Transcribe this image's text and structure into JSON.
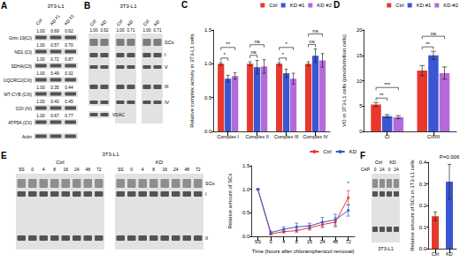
{
  "blots": {
    "A": {
      "label": "A",
      "cell_line": "3T3-L1",
      "lanes": [
        "Ctrl",
        "KD #1",
        "KD #2"
      ],
      "rows": [
        {
          "protein": "Grim 19(CI)",
          "values": [
            "1.00",
            "0.69",
            "0.62"
          ]
        },
        {
          "protein": "ND1 (CI)",
          "values": [
            "1.00",
            "0.57",
            "0.70"
          ]
        },
        {
          "protein": "SDHA(CII)",
          "values": [
            "1.00",
            "0.72",
            "0.87"
          ]
        },
        {
          "protein": "UQCRC2(CIII)",
          "values": [
            "1.00",
            "0.49",
            "0.32"
          ]
        },
        {
          "protein": "MT-CYB (CIII)",
          "values": [
            "1.00",
            "0.35",
            "0.44"
          ]
        },
        {
          "protein": "COI (IV)",
          "values": [
            "1.00",
            "0.40",
            "0.45"
          ]
        },
        {
          "protein": "ATP5A (CV)",
          "values": [
            "1.00",
            "0.67",
            "0.77"
          ]
        },
        {
          "protein": "Actin",
          "values": []
        }
      ]
    },
    "B": {
      "label": "B",
      "cell_line": "3T3-L1",
      "gels": [
        {
          "lanes": [
            "Ctrl",
            "KD"
          ],
          "values": [
            "1.00",
            "0.92"
          ]
        },
        {
          "lanes": [
            "Ctrl",
            "KD"
          ],
          "values": [
            "1.00",
            "0.71"
          ]
        },
        {
          "lanes": [
            "Ctrl",
            "KD"
          ],
          "values": [
            "1.00",
            "0.71"
          ]
        }
      ],
      "loading_control": "VDAC",
      "bands": [
        "SCs",
        "I",
        "V",
        "III",
        "IV"
      ]
    },
    "E": {
      "label": "E",
      "cell_line": "3T3-L1",
      "groups": [
        {
          "name": "Ctrl",
          "lanes": [
            "SS",
            "0",
            "4",
            "8",
            "16",
            "24",
            "48",
            "72"
          ]
        },
        {
          "name": "KD",
          "lanes": [
            "SS",
            "0",
            "4",
            "8",
            "16",
            "24",
            "48",
            "72"
          ]
        }
      ],
      "bands": [
        "SCs",
        "I",
        "II"
      ]
    },
    "F": {
      "label": "F",
      "cell_line": "3T3-L1",
      "groups": [
        "Ctrl",
        "KD"
      ],
      "treatment": "CAP",
      "lanes": [
        "0",
        "24",
        "0",
        "24"
      ]
    }
  },
  "chart_data": [
    {
      "title": "C",
      "type": "bar",
      "categories": [
        "Complex I",
        "Complex II",
        "Complex III",
        "Complex IV"
      ],
      "ylabel": "Relative complex activity in 3T3-L1 cells",
      "ylim": [
        0,
        1.5
      ],
      "yticks": [
        {
          "value": 0,
          "label": "0.0"
        },
        {
          "value": 0.5,
          "label": "0.5"
        },
        {
          "value": 1,
          "label": "1.0"
        },
        {
          "value": 1.5,
          "label": "1.5"
        }
      ],
      "grid": false,
      "legend": "top-right",
      "series": [
        {
          "name": "Ctrl",
          "color": "#e8382e",
          "values": [
            1.0,
            1.0,
            1.0,
            1.0
          ],
          "errors": [
            0.02,
            0.03,
            0.02,
            0.03
          ]
        },
        {
          "name": "KD #1",
          "color": "#3a56d4",
          "values": [
            0.78,
            0.95,
            0.86,
            1.12
          ],
          "errors": [
            0.05,
            0.1,
            0.06,
            0.1
          ]
        },
        {
          "name": "KD #2",
          "color": "#b46ad8",
          "values": [
            0.82,
            0.96,
            0.78,
            1.05
          ],
          "errors": [
            0.05,
            0.1,
            0.08,
            0.1
          ]
        }
      ],
      "annotations": [
        {
          "text": "*",
          "category": "Complex I",
          "from": "Ctrl",
          "to": "KD #1"
        },
        {
          "text": "**",
          "category": "Complex I",
          "from": "Ctrl",
          "to": "KD #2"
        },
        {
          "text": "ns",
          "category": "Complex II",
          "from": "Ctrl",
          "to": "KD #1"
        },
        {
          "text": "ns",
          "category": "Complex II",
          "from": "Ctrl",
          "to": "KD #2"
        },
        {
          "text": "*",
          "category": "Complex III",
          "from": "Ctrl",
          "to": "KD #1"
        },
        {
          "text": "*",
          "category": "Complex III",
          "from": "Ctrl",
          "to": "KD #2"
        },
        {
          "text": "ns",
          "category": "Complex IV",
          "from": "Ctrl",
          "to": "KD #1"
        },
        {
          "text": "ns",
          "category": "Complex IV",
          "from": "Ctrl",
          "to": "KD #2"
        }
      ]
    },
    {
      "title": "D",
      "type": "bar",
      "categories": [
        "CI",
        "CII/III"
      ],
      "ylabel": "VO in 3T3-L1 cells (pmol/s/million cells)",
      "ylim": [
        0,
        20
      ],
      "yticks": [
        0,
        5,
        10,
        15,
        20
      ],
      "grid": false,
      "legend": "top-right",
      "series": [
        {
          "name": "Ctrl",
          "color": "#e8382e",
          "values": [
            5.3,
            12.0
          ],
          "errors": [
            0.4,
            1.0
          ]
        },
        {
          "name": "KD #1",
          "color": "#3a56d4",
          "values": [
            3.0,
            15.0
          ],
          "errors": [
            0.3,
            0.8
          ]
        },
        {
          "name": "KD #2",
          "color": "#b46ad8",
          "values": [
            2.8,
            11.5
          ],
          "errors": [
            0.3,
            1.2
          ]
        }
      ],
      "annotations": [
        {
          "text": "**",
          "category": "CI",
          "from": "Ctrl",
          "to": "KD #1"
        },
        {
          "text": "***",
          "category": "CI",
          "from": "Ctrl",
          "to": "KD #2"
        },
        {
          "text": "**",
          "category": "CII/III",
          "from": "Ctrl",
          "to": "KD #1"
        },
        {
          "text": "ns",
          "category": "CII/III",
          "from": "Ctrl",
          "to": "KD #2"
        }
      ]
    },
    {
      "type": "line",
      "categories": [
        "SS",
        "0",
        "4",
        "8",
        "16",
        "24",
        "48",
        "72"
      ],
      "xlabel": "Time (hours after chloramphenicol removal)",
      "ylabel": "Relative amount of SCs",
      "ylim": [
        0,
        1.5
      ],
      "yticks": [
        {
          "value": 0,
          "label": "0.0"
        },
        {
          "value": 0.5,
          "label": "0.5"
        },
        {
          "value": 1,
          "label": "1.0"
        },
        {
          "value": 1.5,
          "label": "1.5"
        }
      ],
      "grid": false,
      "legend": "top-right",
      "marker": "circle",
      "series": [
        {
          "name": "Ctrl",
          "color": "#e8382e",
          "values": [
            1.0,
            0.05,
            0.1,
            0.12,
            0.18,
            0.25,
            0.3,
            0.82
          ],
          "errors": [
            0,
            0.02,
            0.03,
            0.04,
            0.05,
            0.06,
            0.1,
            0.15
          ]
        },
        {
          "name": "KD",
          "color": "#3a56d4",
          "values": [
            1.0,
            0.08,
            0.15,
            0.2,
            0.22,
            0.3,
            0.35,
            0.55
          ],
          "errors": [
            0,
            0.03,
            0.05,
            0.08,
            0.06,
            0.1,
            0.12,
            0.12
          ]
        }
      ],
      "annotations": [
        {
          "text": "*",
          "category": "72"
        }
      ]
    },
    {
      "type": "bar",
      "categories": [
        "Ctrl",
        "KD"
      ],
      "ylabel": "Relative amount of SCs in 3T3-L1 cells",
      "ylim": [
        0,
        0.4
      ],
      "yticks": [
        {
          "value": 0,
          "label": "0.0"
        },
        {
          "value": 0.1,
          "label": "0.1"
        },
        {
          "value": 0.2,
          "label": "0.2"
        },
        {
          "value": 0.3,
          "label": "0.3"
        },
        {
          "value": 0.4,
          "label": "0.4"
        }
      ],
      "grid": false,
      "values": [
        0.15,
        0.31
      ],
      "errors": [
        0.02,
        0.08
      ],
      "colors": [
        "#e8382e",
        "#3a56d4"
      ],
      "annotations": [
        {
          "text": "P=0.006",
          "category": "KD"
        }
      ]
    }
  ]
}
